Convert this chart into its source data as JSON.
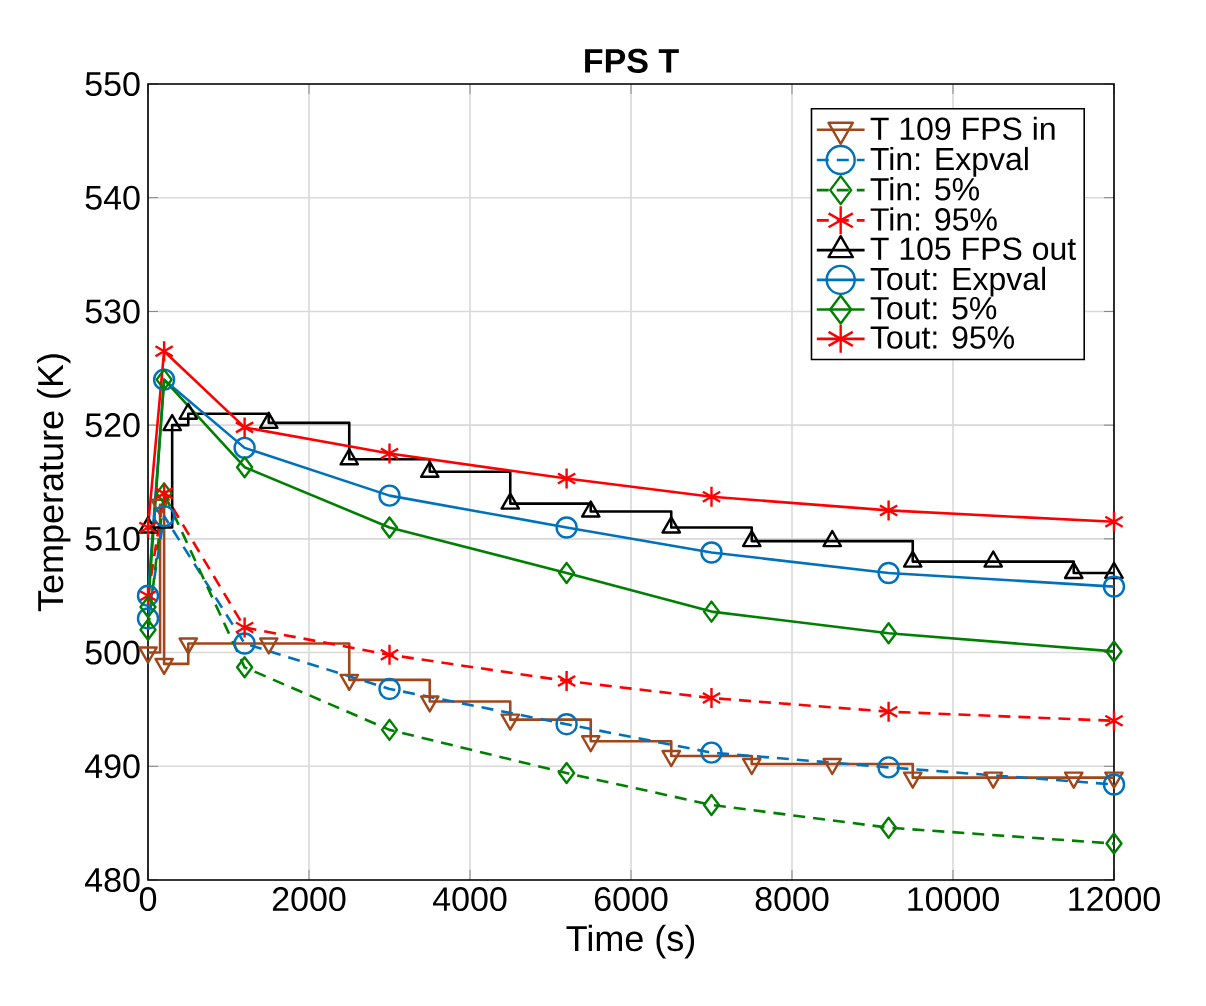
{
  "chart_data": {
    "type": "line",
    "title": "FPS T",
    "xlabel": "Time (s)",
    "ylabel": "Temperature (K)",
    "xlim": [
      0,
      12000
    ],
    "ylim": [
      480,
      550
    ],
    "xticks": [
      0,
      2000,
      4000,
      6000,
      8000,
      10000,
      12000
    ],
    "yticks": [
      480,
      490,
      500,
      510,
      520,
      530,
      540,
      550
    ],
    "grid": true,
    "legend": "top right",
    "series": [
      {
        "name": "T 109 FPS in",
        "type": "step",
        "color": "#a0461a",
        "marker": "triangle down",
        "line_style": "solid",
        "x": [
          0,
          150,
          200,
          500,
          1500,
          2500,
          3500,
          4500,
          5500,
          6500,
          7500,
          8500,
          9500,
          10500,
          11500,
          12000
        ],
        "values": [
          500,
          513,
          499,
          500.8,
          500.8,
          497.6,
          495.7,
          494.1,
          492.2,
          490.9,
          490.2,
          490.2,
          489,
          489,
          489,
          489
        ]
      },
      {
        "name": "Tin: Expval",
        "color": "#0072bd",
        "marker": "circle",
        "line_style": "dashed",
        "x": [
          0,
          200,
          1200,
          3000,
          5200,
          7000,
          9200,
          12000
        ],
        "values": [
          503,
          512,
          500.8,
          496.8,
          493.7,
          491.2,
          489.9,
          488.4
        ]
      },
      {
        "name": "Tin: 5%",
        "color": "#008000",
        "marker": "diamond",
        "line_style": "dashed",
        "x": [
          0,
          200,
          1200,
          3000,
          5200,
          7000,
          9200,
          12000
        ],
        "values": [
          502,
          514,
          498.7,
          493.2,
          489.4,
          486.6,
          484.6,
          483.2
        ]
      },
      {
        "name": "Tin: 95%",
        "color": "#ff0000",
        "marker": "cross",
        "line_style": "dashed",
        "x": [
          0,
          200,
          1200,
          3000,
          5200,
          7000,
          9200,
          12000
        ],
        "values": [
          505,
          514,
          502.2,
          499.8,
          497.5,
          496,
          494.8,
          494
        ]
      },
      {
        "name": "T 105 FPS out",
        "type": "step",
        "color": "#000000",
        "marker": "triangle",
        "line_style": "solid",
        "x": [
          0,
          300,
          500,
          1500,
          2500,
          3500,
          4500,
          5500,
          6500,
          7500,
          8500,
          9500,
          10500,
          11500,
          12000
        ],
        "values": [
          511,
          520,
          521,
          520.2,
          517,
          515.9,
          513.1,
          512.4,
          511,
          509.8,
          509.8,
          508,
          508,
          507,
          507
        ]
      },
      {
        "name": "Tout: Expval",
        "color": "#0072bd",
        "marker": "circle",
        "line_style": "solid",
        "x": [
          0,
          200,
          1200,
          3000,
          5200,
          7000,
          9200,
          12000
        ],
        "values": [
          505,
          524,
          518,
          513.8,
          511,
          508.8,
          507,
          505.8
        ]
      },
      {
        "name": "Tout: 5%",
        "color": "#008000",
        "marker": "diamond",
        "line_style": "solid",
        "x": [
          0,
          200,
          1200,
          3000,
          5200,
          7000,
          9200,
          12000
        ],
        "values": [
          504,
          524,
          516.3,
          511,
          507,
          503.6,
          501.7,
          500.1
        ]
      },
      {
        "name": "Tout: 95%",
        "color": "#ff0000",
        "marker": "cross",
        "line_style": "solid",
        "x": [
          0,
          200,
          1200,
          3000,
          5200,
          7000,
          9200,
          12000
        ],
        "values": [
          511,
          526.5,
          519.8,
          517.5,
          515.3,
          513.7,
          512.5,
          511.5
        ]
      }
    ]
  }
}
